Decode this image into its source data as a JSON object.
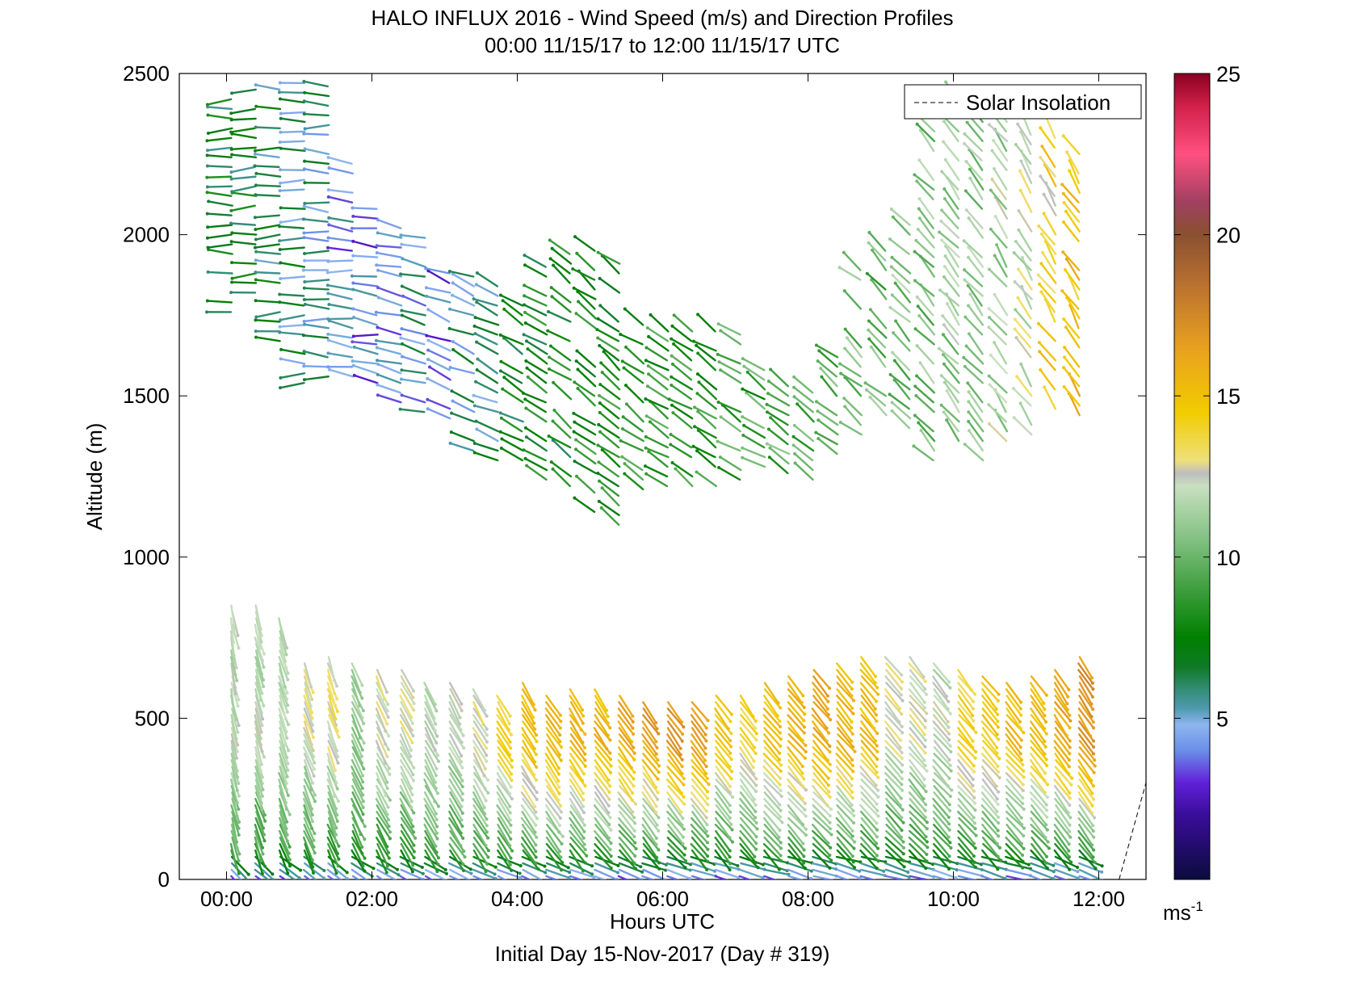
{
  "chart_data": {
    "type": "wind_barb_profile",
    "title": "HALO INFLUX 2016 - Wind Speed (m/s) and Direction Profiles",
    "subtitle": "00:00 11/15/17 to 12:00 11/15/17  UTC",
    "xlabel": "Hours UTC",
    "xlabel2": "Initial Day 15-Nov-2017 (Day # 319)",
    "ylabel": "Altitude (m)",
    "xlim_hours": [
      -0.65,
      12.65
    ],
    "ylim": [
      0,
      2500
    ],
    "x_ticks": [
      {
        "value": 0,
        "label": "00:00"
      },
      {
        "value": 2,
        "label": "02:00"
      },
      {
        "value": 4,
        "label": "04:00"
      },
      {
        "value": 6,
        "label": "06:00"
      },
      {
        "value": 8,
        "label": "08:00"
      },
      {
        "value": 10,
        "label": "10:00"
      },
      {
        "value": 12,
        "label": "12:00"
      }
    ],
    "y_ticks": [
      {
        "value": 0,
        "label": "0"
      },
      {
        "value": 500,
        "label": "500"
      },
      {
        "value": 1000,
        "label": "1000"
      },
      {
        "value": 1500,
        "label": "1500"
      },
      {
        "value": 2000,
        "label": "2000"
      },
      {
        "value": 2500,
        "label": "2500"
      }
    ],
    "legend": {
      "label": "Solar Insolation",
      "position": "top-right",
      "style": "dashed"
    },
    "colorbar": {
      "unit": "ms",
      "unit_exponent": "-1",
      "range": [
        0,
        25
      ],
      "ticks": [
        {
          "value": 5,
          "label": "5"
        },
        {
          "value": 10,
          "label": "10"
        },
        {
          "value": 15,
          "label": "15"
        },
        {
          "value": 20,
          "label": "20"
        },
        {
          "value": 25,
          "label": "25"
        }
      ],
      "stops": [
        {
          "value": 0,
          "color": "#0b0b3d"
        },
        {
          "value": 2,
          "color": "#3a0d9a"
        },
        {
          "value": 3,
          "color": "#6020d8"
        },
        {
          "value": 4,
          "color": "#6a8fe8"
        },
        {
          "value": 4.8,
          "color": "#8fb5f0"
        },
        {
          "value": 5.3,
          "color": "#4f9ab0"
        },
        {
          "value": 6.0,
          "color": "#2e8a6a"
        },
        {
          "value": 6.6,
          "color": "#0e7a25"
        },
        {
          "value": 7.5,
          "color": "#008000"
        },
        {
          "value": 9.0,
          "color": "#3e9e3e"
        },
        {
          "value": 10.5,
          "color": "#80c080"
        },
        {
          "value": 12.2,
          "color": "#c8e0c0"
        },
        {
          "value": 12.6,
          "color": "#bdbdbd"
        },
        {
          "value": 13.0,
          "color": "#efe07a"
        },
        {
          "value": 14.5,
          "color": "#f2cc00"
        },
        {
          "value": 16.5,
          "color": "#e8a020"
        },
        {
          "value": 18.5,
          "color": "#b87030"
        },
        {
          "value": 20,
          "color": "#8a5030"
        },
        {
          "value": 21,
          "color": "#a04060"
        },
        {
          "value": 22.5,
          "color": "#ff5080"
        },
        {
          "value": 24,
          "color": "#d0204a"
        },
        {
          "value": 25,
          "color": "#8a0020"
        }
      ]
    },
    "time_step_hours": 0.333,
    "profiles": [
      {
        "t": 0.07,
        "low": [
          0,
          860,
          9.5,
          12.0,
          -16
        ],
        "high": [
          [
            1760,
            2480,
            7.0,
            -1.5
          ]
        ]
      },
      {
        "t": 0.4,
        "low": [
          0,
          860,
          9.0,
          12.0,
          -20
        ],
        "high": [
          [
            1760,
            2480,
            6.8,
            -1.2
          ]
        ]
      },
      {
        "t": 0.73,
        "low": [
          0,
          820,
          9.0,
          12.0,
          -22
        ],
        "high": [
          [
            1640,
            2470,
            6.5,
            -0.5
          ]
        ]
      },
      {
        "t": 1.07,
        "low": [
          0,
          680,
          9.0,
          12.5,
          -24
        ],
        "high": [
          [
            1540,
            2480,
            6.0,
            0.5
          ]
        ]
      },
      {
        "t": 1.4,
        "low": [
          0,
          700,
          9.0,
          13.0,
          -24
        ],
        "high": [
          [
            1560,
            2480,
            5.5,
            3.0
          ]
        ]
      },
      {
        "t": 1.73,
        "low": [
          0,
          680,
          9.0,
          11.0,
          -28
        ],
        "high": [
          [
            1560,
            2240,
            4.5,
            6.0
          ]
        ]
      },
      {
        "t": 2.07,
        "low": [
          0,
          650,
          9.0,
          12.5,
          -30
        ],
        "high": [
          [
            1540,
            2100,
            4.0,
            8.0
          ]
        ]
      },
      {
        "t": 2.4,
        "low": [
          0,
          650,
          9.0,
          12.5,
          -32
        ],
        "high": [
          [
            1480,
            2040,
            4.0,
            12.0
          ]
        ]
      },
      {
        "t": 2.73,
        "low": [
          0,
          620,
          9.5,
          12.0,
          -32
        ],
        "high": [
          [
            1450,
            2000,
            5.0,
            16.0
          ]
        ]
      },
      {
        "t": 3.07,
        "low": [
          0,
          620,
          9.5,
          12.0,
          -34
        ],
        "high": [
          [
            1400,
            1900,
            4.0,
            20.0
          ]
        ]
      },
      {
        "t": 3.4,
        "low": [
          0,
          600,
          9.5,
          13.0,
          -34
        ],
        "high": [
          [
            1300,
            1880,
            5.5,
            24.0
          ]
        ]
      },
      {
        "t": 3.73,
        "low": [
          0,
          580,
          9.5,
          14.0,
          -36
        ],
        "high": [
          [
            1300,
            1840,
            6.0,
            26.0
          ]
        ]
      },
      {
        "t": 4.07,
        "low": [
          0,
          620,
          9.5,
          15.0,
          -36
        ],
        "high": [
          [
            1300,
            1820,
            7.0,
            30.0
          ]
        ]
      },
      {
        "t": 4.4,
        "low": [
          0,
          580,
          9.5,
          15.5,
          -38
        ],
        "high": [
          [
            1240,
            1900,
            7.5,
            34.0
          ]
        ]
      },
      {
        "t": 4.73,
        "low": [
          0,
          600,
          9.5,
          15.5,
          -38
        ],
        "high": [
          [
            1220,
            1960,
            7.5,
            36.0
          ]
        ]
      },
      {
        "t": 5.07,
        "low": [
          0,
          600,
          9.5,
          15.5,
          -40
        ],
        "high": [
          [
            1140,
            1960,
            8.0,
            38.0
          ]
        ]
      },
      {
        "t": 5.4,
        "low": [
          0,
          580,
          9.0,
          16.0,
          -40
        ],
        "high": [
          [
            1100,
            1960,
            8.0,
            38.0
          ]
        ]
      },
      {
        "t": 5.73,
        "low": [
          0,
          560,
          9.0,
          16.5,
          -40
        ],
        "high": [
          [
            1180,
            1760,
            8.5,
            36.0
          ]
        ]
      },
      {
        "t": 6.07,
        "low": [
          0,
          560,
          9.0,
          16.5,
          -42
        ],
        "high": [
          [
            1220,
            1720,
            8.5,
            34.0
          ]
        ]
      },
      {
        "t": 6.4,
        "low": [
          0,
          560,
          9.0,
          16.5,
          -42
        ],
        "high": [
          [
            1220,
            1700,
            8.5,
            34.0
          ]
        ]
      },
      {
        "t": 6.73,
        "low": [
          0,
          580,
          9.0,
          14.5,
          -42
        ],
        "high": [
          [
            1220,
            1700,
            8.5,
            34.0
          ]
        ]
      },
      {
        "t": 7.07,
        "low": [
          0,
          580,
          9.0,
          14.0,
          -42
        ],
        "high": [
          [
            1240,
            1700,
            9.0,
            34.0
          ]
        ]
      },
      {
        "t": 7.4,
        "low": [
          0,
          620,
          9.0,
          15.0,
          -44
        ],
        "high": [
          [
            1280,
            1580,
            9.0,
            34.0
          ]
        ]
      },
      {
        "t": 7.73,
        "low": [
          0,
          640,
          9.0,
          15.5,
          -44
        ],
        "high": [
          [
            1260,
            1560,
            9.5,
            36.0
          ]
        ]
      },
      {
        "t": 8.07,
        "low": [
          0,
          660,
          9.0,
          16.0,
          -44
        ],
        "high": [
          [
            1240,
            1540,
            9.5,
            38.0
          ]
        ]
      },
      {
        "t": 8.4,
        "low": [
          0,
          680,
          9.0,
          15.5,
          -44
        ],
        "high": [
          [
            1320,
            1640,
            9.5,
            40.0
          ]
        ]
      },
      {
        "t": 8.73,
        "low": [
          0,
          700,
          9.0,
          15.0,
          -44
        ],
        "high": [
          [
            1380,
            1900,
            10.0,
            42.0
          ]
        ]
      },
      {
        "t": 9.07,
        "low": [
          0,
          700,
          9.0,
          12.5,
          -44
        ],
        "high": [
          [
            1440,
            1960,
            10.0,
            44.0
          ]
        ]
      },
      {
        "t": 9.4,
        "low": [
          0,
          700,
          9.0,
          12.5,
          -44
        ],
        "high": [
          [
            1400,
            2050,
            10.5,
            46.0
          ]
        ]
      },
      {
        "t": 9.73,
        "low": [
          0,
          680,
          9.0,
          12.0,
          -44
        ],
        "high": [
          [
            1300,
            2400,
            10.5,
            48.0
          ]
        ]
      },
      {
        "t": 10.07,
        "low": [
          0,
          660,
          9.0,
          14.0,
          -44
        ],
        "high": [
          [
            1360,
            2440,
            11.0,
            50.0
          ]
        ]
      },
      {
        "t": 10.4,
        "low": [
          0,
          640,
          9.0,
          14.5,
          -44
        ],
        "high": [
          [
            1300,
            2420,
            11.0,
            52.0
          ]
        ]
      },
      {
        "t": 10.73,
        "low": [
          0,
          620,
          9.0,
          15.0,
          -44
        ],
        "high": [
          [
            1360,
            2400,
            11.5,
            54.0
          ]
        ]
      },
      {
        "t": 11.07,
        "low": [
          0,
          640,
          9.0,
          15.0,
          -42
        ],
        "high": [
          [
            1380,
            2400,
            12.0,
            56.0
          ]
        ]
      },
      {
        "t": 11.4,
        "low": [
          0,
          660,
          9.0,
          16.0,
          -40
        ],
        "high": [
          [
            1460,
            2300,
            14.0,
            56.0
          ]
        ]
      },
      {
        "t": 11.73,
        "low": [
          0,
          700,
          9.0,
          17.0,
          -38
        ],
        "high": [
          [
            1440,
            2260,
            15.0,
            58.0
          ]
        ]
      }
    ]
  }
}
